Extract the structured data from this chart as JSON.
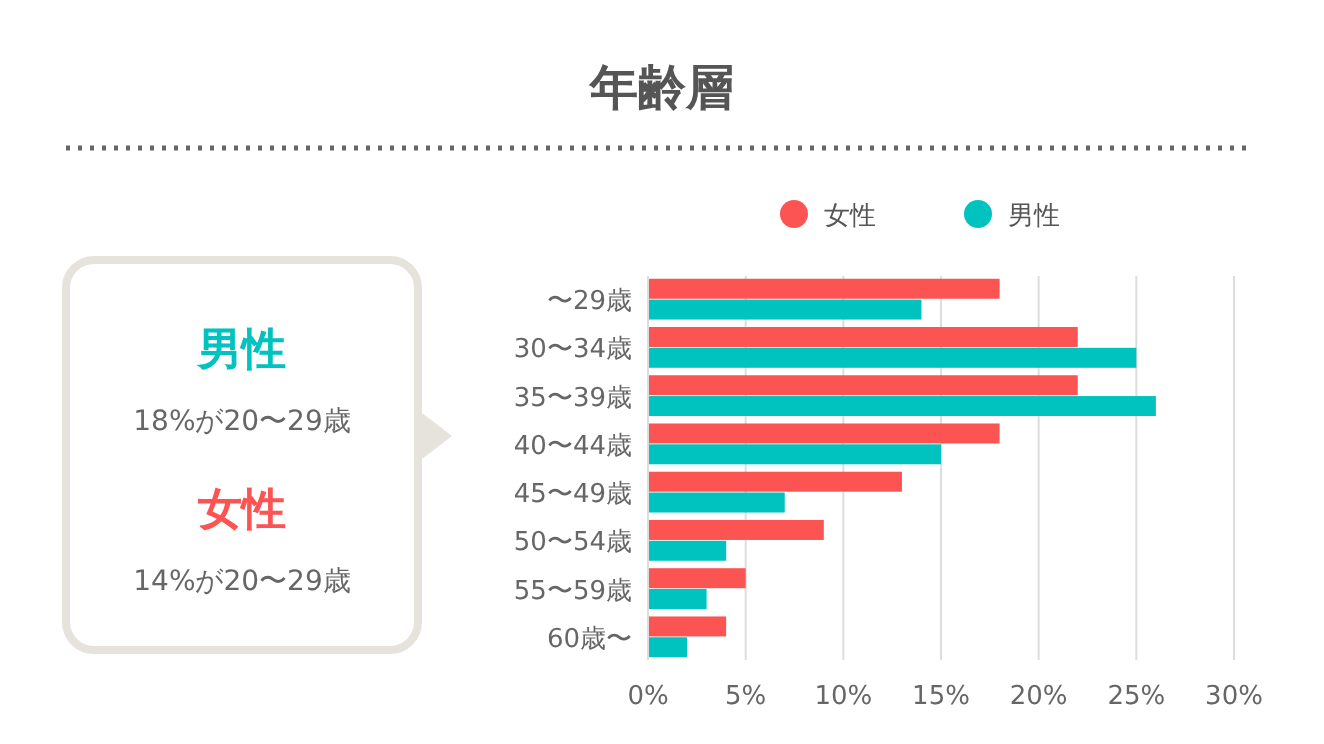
{
  "chart_data": {
    "type": "bar",
    "orientation": "horizontal",
    "title": "年齢層",
    "categories": [
      "〜29歳",
      "30〜34歳",
      "35〜39歳",
      "40〜44歳",
      "45〜49歳",
      "50〜54歳",
      "55〜59歳",
      "60歳〜"
    ],
    "series": [
      {
        "name": "女性",
        "color": "#fc5353",
        "values": [
          18,
          22,
          22,
          18,
          13,
          9,
          5,
          4
        ]
      },
      {
        "name": "男性",
        "color": "#00c2be",
        "values": [
          14,
          25,
          26,
          15,
          7,
          4,
          3,
          2
        ]
      }
    ],
    "xlim": [
      0,
      30
    ],
    "xticks": [
      {
        "value": 0,
        "label": "0%"
      },
      {
        "value": 5,
        "label": "5%"
      },
      {
        "value": 10,
        "label": "10%"
      },
      {
        "value": 15,
        "label": "15%"
      },
      {
        "value": 20,
        "label": "20%"
      },
      {
        "value": 25,
        "label": "25%"
      },
      {
        "value": 30,
        "label": "30%"
      }
    ],
    "grid": "x",
    "legend": "top",
    "annotations": [
      "男性",
      "18%が20〜29歳",
      "女性",
      "14%が20〜29歳"
    ]
  }
}
